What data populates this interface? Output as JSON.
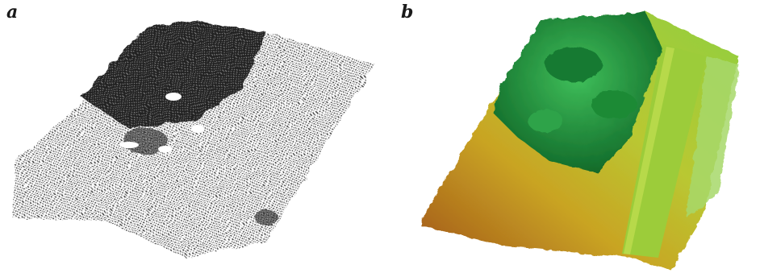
{
  "panels": [
    {
      "label": "a",
      "description_icon": "lidar-point-cloud"
    },
    {
      "label": "b",
      "description_icon": "colored-terrain-model"
    }
  ],
  "colors": {
    "point_cloud": "#2a2a2a",
    "terrain_low": "#b5651d",
    "terrain_mid": "#c8b820",
    "terrain_high": "#8fc83a",
    "trees": "#1f8f3a",
    "road": "#9ccc3a"
  }
}
